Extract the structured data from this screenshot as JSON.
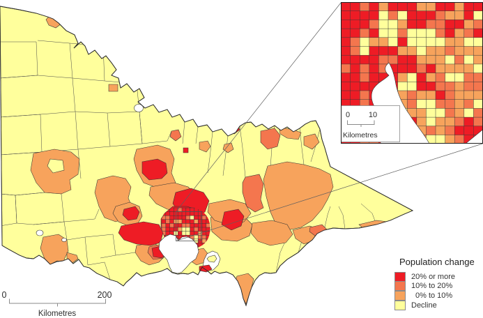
{
  "colors": {
    "category_20_plus": "#EE1C25",
    "category_10_20": "#F4764E",
    "category_0_10": "#F7A35C",
    "category_decline": "#FFFF9C",
    "water": "#FFFFFF",
    "boundary": "#3a3a3a",
    "connector_line": "#5f5f5f"
  },
  "legend": {
    "title": "Population change",
    "items": [
      {
        "label": "20% or more",
        "color": "#EE1C25"
      },
      {
        "label": "10% to 20%",
        "color": "#F4764E"
      },
      {
        "label": "0% to 10%",
        "color": "#F7A35C"
      },
      {
        "label": "Decline",
        "color": "#FFFF9C"
      }
    ]
  },
  "main_scalebar": {
    "zero": "0",
    "max": "200",
    "unit": "Kilometres"
  },
  "inset_scalebar": {
    "zero": "0",
    "max": "10",
    "unit": "Kilometres"
  }
}
